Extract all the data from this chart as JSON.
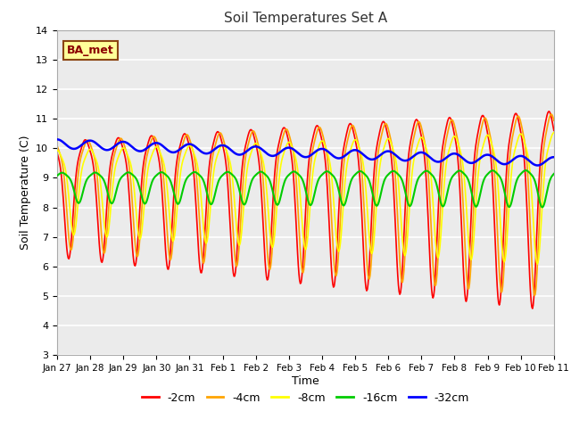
{
  "title": "Soil Temperatures Set A",
  "xlabel": "Time",
  "ylabel": "Soil Temperature (C)",
  "ylim": [
    3.0,
    14.0
  ],
  "yticks": [
    3.0,
    4.0,
    5.0,
    6.0,
    7.0,
    8.0,
    9.0,
    10.0,
    11.0,
    12.0,
    13.0,
    14.0
  ],
  "xtick_labels": [
    "Jan 27",
    "Jan 28",
    "Jan 29",
    "Jan 30",
    "Jan 31",
    "Feb 1",
    "Feb 2",
    "Feb 3",
    "Feb 4",
    "Feb 5",
    "Feb 6",
    "Feb 7",
    "Feb 8",
    "Feb 9",
    "Feb 10",
    "Feb 11"
  ],
  "line_colors": {
    "-2cm": "#FF0000",
    "-4cm": "#FFA500",
    "-8cm": "#FFFF00",
    "-16cm": "#00CC00",
    "-32cm": "#0000FF"
  },
  "line_widths": {
    "-2cm": 1.2,
    "-4cm": 1.2,
    "-8cm": 1.2,
    "-16cm": 1.5,
    "-32cm": 1.8
  },
  "annotation_text": "BA_met",
  "annotation_bg": "#FFFF99",
  "annotation_border": "#8B4513",
  "plot_bg": "#EBEBEB",
  "n_points": 720
}
